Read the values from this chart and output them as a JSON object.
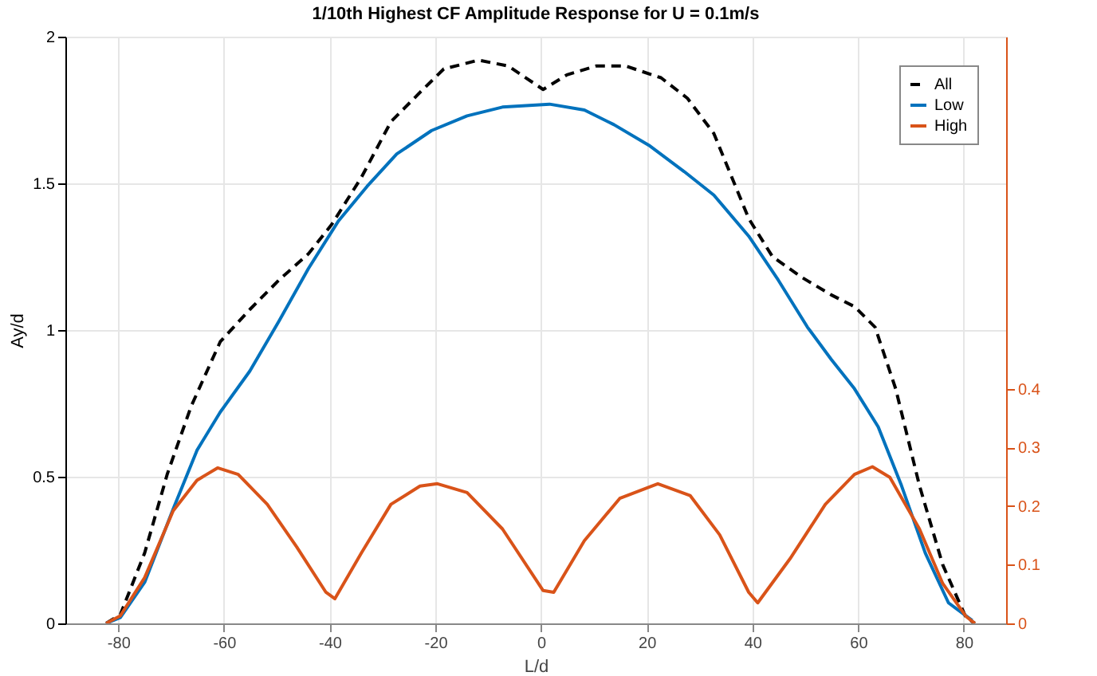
{
  "chart_data": {
    "type": "line",
    "title": "1/10th Highest CF Amplitude Response for U = 0.1m/s",
    "xlabel": "L/d",
    "ylabel": "Ay/d",
    "xlim": [
      -90,
      88
    ],
    "xticks": [
      -80,
      -60,
      -40,
      -20,
      0,
      20,
      40,
      60,
      80
    ],
    "ylim": [
      0,
      2
    ],
    "yticks": [
      0,
      0.5,
      1,
      1.5,
      2
    ],
    "y2lim": [
      0,
      1
    ],
    "y2ticks": [
      0,
      0.1,
      0.2,
      0.3,
      0.4
    ],
    "grid": true,
    "legend": "top right",
    "marker": "none",
    "series": [
      {
        "name": "All",
        "color": "#000000",
        "line_style": "dashed",
        "x": [
          -82.3,
          -79.6,
          -75,
          -70.7,
          -66.2,
          -60.7,
          -55.1,
          -49.6,
          -44,
          -39.6,
          -34,
          -28.4,
          -22.9,
          -18.4,
          -11.8,
          -6.2,
          0.4,
          4.9,
          10.4,
          16,
          22.7,
          27.7,
          32.7,
          39.3,
          43.8,
          49.3,
          54.9,
          59.3,
          63.2,
          67.1,
          71.6,
          76,
          80.4,
          82.1
        ],
        "values": [
          0,
          0.03,
          0.24,
          0.51,
          0.74,
          0.96,
          1.07,
          1.17,
          1.26,
          1.36,
          1.52,
          1.71,
          1.81,
          1.89,
          1.92,
          1.9,
          1.82,
          1.87,
          1.9,
          1.9,
          1.86,
          1.79,
          1.67,
          1.38,
          1.25,
          1.18,
          1.12,
          1.08,
          1.01,
          0.8,
          0.47,
          0.2,
          0.02,
          0
        ]
      },
      {
        "name": "Low",
        "color": "#0072bd",
        "line_style": "solid",
        "x": [
          -82.3,
          -79.6,
          -75,
          -69.6,
          -65.1,
          -60.7,
          -55.1,
          -49.6,
          -44,
          -38.4,
          -32.9,
          -27.3,
          -20.7,
          -14,
          -7.3,
          1.6,
          8.2,
          13.8,
          20.4,
          27.1,
          32.7,
          39.3,
          44.9,
          50.4,
          54.9,
          59.3,
          63.8,
          68.2,
          72.7,
          77.1,
          81.6
        ],
        "values": [
          0,
          0.02,
          0.14,
          0.39,
          0.59,
          0.72,
          0.86,
          1.03,
          1.21,
          1.37,
          1.49,
          1.6,
          1.68,
          1.73,
          1.76,
          1.77,
          1.75,
          1.7,
          1.63,
          1.54,
          1.46,
          1.32,
          1.17,
          1.01,
          0.9,
          0.8,
          0.67,
          0.47,
          0.24,
          0.07,
          0.01
        ]
      },
      {
        "name": "High",
        "color": "#d95319",
        "line_style": "solid",
        "axis": "y2",
        "x": [
          -82.3,
          -79.6,
          -75,
          -69.6,
          -65.1,
          -61.2,
          -57.3,
          -51.8,
          -46.2,
          -40.7,
          -39,
          -34,
          -28.4,
          -22.9,
          -19.6,
          -14,
          -7.3,
          0.4,
          2.4,
          8.2,
          14.9,
          22.1,
          28.2,
          33.8,
          39.3,
          41,
          47.1,
          53.8,
          59.3,
          62.7,
          66,
          71.6,
          76,
          80.4,
          82.1
        ],
        "values": [
          0,
          0.013,
          0.078,
          0.192,
          0.244,
          0.265,
          0.254,
          0.203,
          0.13,
          0.053,
          0.042,
          0.12,
          0.203,
          0.234,
          0.238,
          0.223,
          0.161,
          0.056,
          0.053,
          0.141,
          0.213,
          0.238,
          0.218,
          0.151,
          0.053,
          0.035,
          0.11,
          0.203,
          0.254,
          0.267,
          0.249,
          0.161,
          0.068,
          0.012,
          0
        ]
      }
    ]
  }
}
